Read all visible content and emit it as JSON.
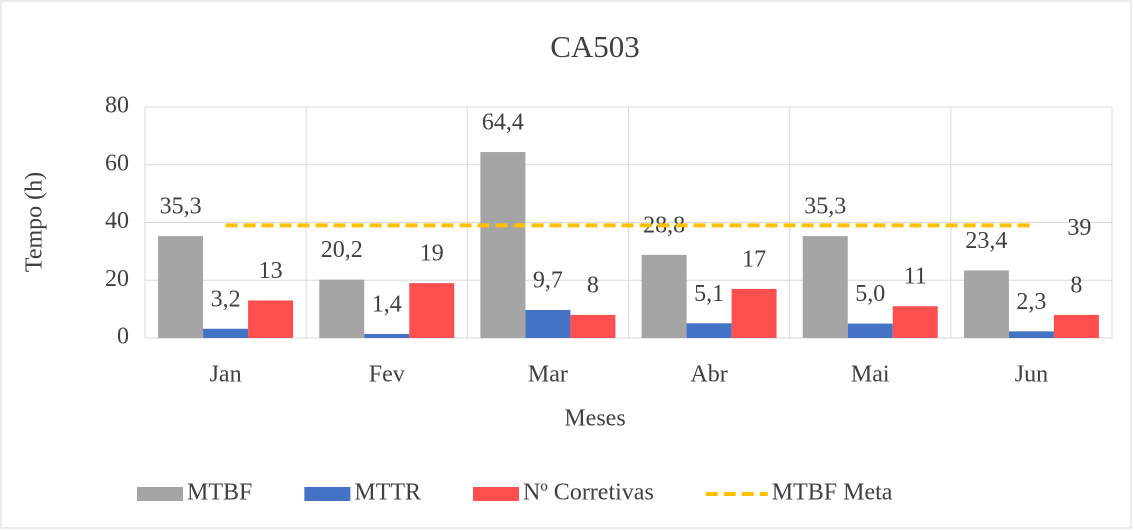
{
  "chart_data": {
    "type": "bar",
    "title": "CA503",
    "x_label": "Meses",
    "y_label": "Tempo (h)",
    "categories": [
      "Jan",
      "Fev",
      "Mar",
      "Abr",
      "Mai",
      "Jun"
    ],
    "series": [
      {
        "name": "MTBF",
        "color": "#a5a5a5",
        "type": "bar",
        "values": [
          35.3,
          20.2,
          64.4,
          28.8,
          35.3,
          23.4
        ],
        "value_labels": [
          "35,3",
          "20,2",
          "64,4",
          "28,8",
          "35,3",
          "23,4"
        ]
      },
      {
        "name": "MTTR",
        "color": "#4472c4",
        "type": "bar",
        "values": [
          3.2,
          1.4,
          9.7,
          5.1,
          5.0,
          2.3
        ],
        "value_labels": [
          "3,2",
          "1,4",
          "9,7",
          "5,1",
          "5,0",
          "2,3"
        ]
      },
      {
        "name": "Nº Corretivas",
        "color": "#ff4f4f",
        "type": "bar",
        "values": [
          13,
          19,
          8,
          17,
          11,
          8
        ]
      },
      {
        "name": "MTBF Meta",
        "color": "#ffc000",
        "type": "line",
        "dashed": true,
        "values": [
          39,
          39,
          39,
          39,
          39,
          39
        ],
        "value_labels": [
          null,
          null,
          null,
          null,
          null,
          "39"
        ]
      }
    ],
    "ylim": [
      0,
      80
    ],
    "yticks": [
      0,
      20,
      40,
      60,
      80
    ],
    "grid": true,
    "legend": "bottom"
  }
}
